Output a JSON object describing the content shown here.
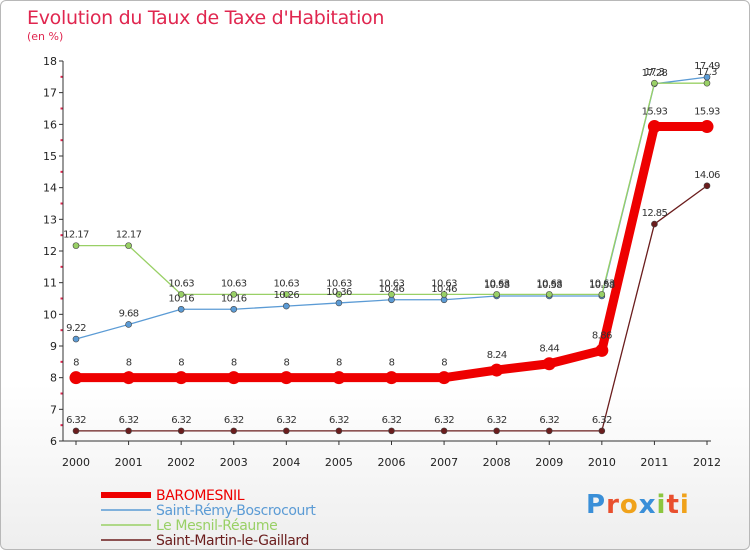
{
  "logo": {
    "parts": [
      {
        "text": "P",
        "color": "#3a8fd8"
      },
      {
        "text": "r",
        "color": "#e94f2e"
      },
      {
        "text": "o",
        "color": "#f0a21a"
      },
      {
        "text": "x",
        "color": "#3a8fd8"
      },
      {
        "text": "i",
        "color": "#8cc63f"
      },
      {
        "text": "t",
        "color": "#e94f2e"
      },
      {
        "text": "i",
        "color": "#f0a21a"
      }
    ]
  },
  "chart_data": {
    "type": "line",
    "title": "Evolution du Taux de Taxe d'Habitation",
    "subtitle": "(en %)",
    "xlabel": "",
    "ylabel": "",
    "ylim": [
      6,
      18
    ],
    "yticks": [
      "6",
      "7",
      "8",
      "9",
      "10",
      "11",
      "12",
      "13",
      "14",
      "15",
      "16",
      "17",
      "18"
    ],
    "categories": [
      "2000",
      "2001",
      "2002",
      "2003",
      "2004",
      "2005",
      "2006",
      "2007",
      "2008",
      "2009",
      "2010",
      "2011",
      "2012"
    ],
    "grid": false,
    "legend_position": "bottom-left",
    "series": [
      {
        "name": "Saint-Martin-le-Gaillard",
        "color": "#6b1d1d",
        "width": 1.3,
        "marker": 3,
        "values": [
          6.32,
          6.32,
          6.32,
          6.32,
          6.32,
          6.32,
          6.32,
          6.32,
          6.32,
          6.32,
          6.32,
          12.85,
          14.06
        ],
        "labels": [
          "6.32",
          "6.32",
          "6.32",
          "6.32",
          "6.32",
          "6.32",
          "6.32",
          "6.32",
          "6.32",
          "6.32",
          "6.32",
          "12.85",
          "14.06"
        ]
      },
      {
        "name": "Saint-Rémy-Boscrocourt",
        "color": "#5b9bd5",
        "width": 1.3,
        "marker": 3,
        "values": [
          9.22,
          9.68,
          10.16,
          10.16,
          10.26,
          10.36,
          10.46,
          10.46,
          10.58,
          10.58,
          10.58,
          17.28,
          17.49
        ],
        "labels": [
          "9.22",
          "9.68",
          "10.16",
          "10.16",
          "10.26",
          "10.36",
          "10.46",
          "10.46",
          "10.58",
          "10.58",
          "10.58",
          "17.28",
          "17.49"
        ]
      },
      {
        "name": "Le Mesnil-Réaume",
        "color": "#99d066",
        "width": 1.3,
        "marker": 3,
        "values": [
          12.17,
          12.17,
          10.63,
          10.63,
          10.63,
          10.63,
          10.63,
          10.63,
          10.63,
          10.63,
          10.63,
          17.3,
          17.3
        ],
        "labels": [
          "12.17",
          "12.17",
          "10.63",
          "10.63",
          "10.63",
          "10.63",
          "10.63",
          "10.63",
          "10.63",
          "10.63",
          "10.63",
          "17.3",
          "17.3"
        ]
      },
      {
        "name": "BAROMESNIL",
        "color": "#ee0000",
        "width": 9,
        "marker": 6.5,
        "values": [
          8,
          8,
          8,
          8,
          8,
          8,
          8,
          8,
          8.24,
          8.44,
          8.86,
          15.93,
          15.93
        ],
        "labels": [
          "8",
          "8",
          "8",
          "8",
          "8",
          "8",
          "8",
          "8",
          "8.24",
          "8.44",
          "8.86",
          "15.93",
          "15.93"
        ]
      }
    ],
    "legend_order": [
      "BAROMESNIL",
      "Saint-Rémy-Boscrocourt",
      "Le Mesnil-Réaume",
      "Saint-Martin-le-Gaillard"
    ]
  }
}
